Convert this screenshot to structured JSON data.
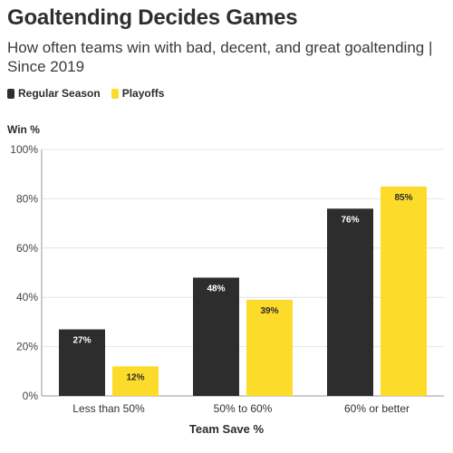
{
  "title": "Goaltending Decides Games",
  "subtitle": "How often teams win with bad, decent, and great goaltending | Since 2019",
  "colors": {
    "regular": "#2d2d2d",
    "playoffs": "#fcdb2b",
    "grid": "#e4e4e4",
    "axis": "#555555"
  },
  "chart_data": {
    "type": "bar",
    "title": "Goaltending Decides Games",
    "subtitle": "How often teams win with bad, decent, and great goaltending | Since 2019",
    "xlabel": "Team Save %",
    "ylabel": "Win %",
    "categories": [
      "Less than 50%",
      "50% to 60%",
      "60% or better"
    ],
    "series": [
      {
        "name": "Regular Season",
        "values": [
          27,
          48,
          76
        ],
        "labels": [
          "27%",
          "48%",
          "76%"
        ],
        "color": "#2d2d2d"
      },
      {
        "name": "Playoffs",
        "values": [
          12,
          39,
          85
        ],
        "labels": [
          "12%",
          "39%",
          "85%"
        ],
        "color": "#fcdb2b"
      }
    ],
    "ylim": [
      0,
      100
    ],
    "yticks": [
      0,
      20,
      40,
      60,
      80,
      100
    ],
    "ytick_labels": [
      "0%",
      "20%",
      "40%",
      "60%",
      "80%",
      "100%"
    ],
    "grid": true,
    "legend": "top-left"
  }
}
